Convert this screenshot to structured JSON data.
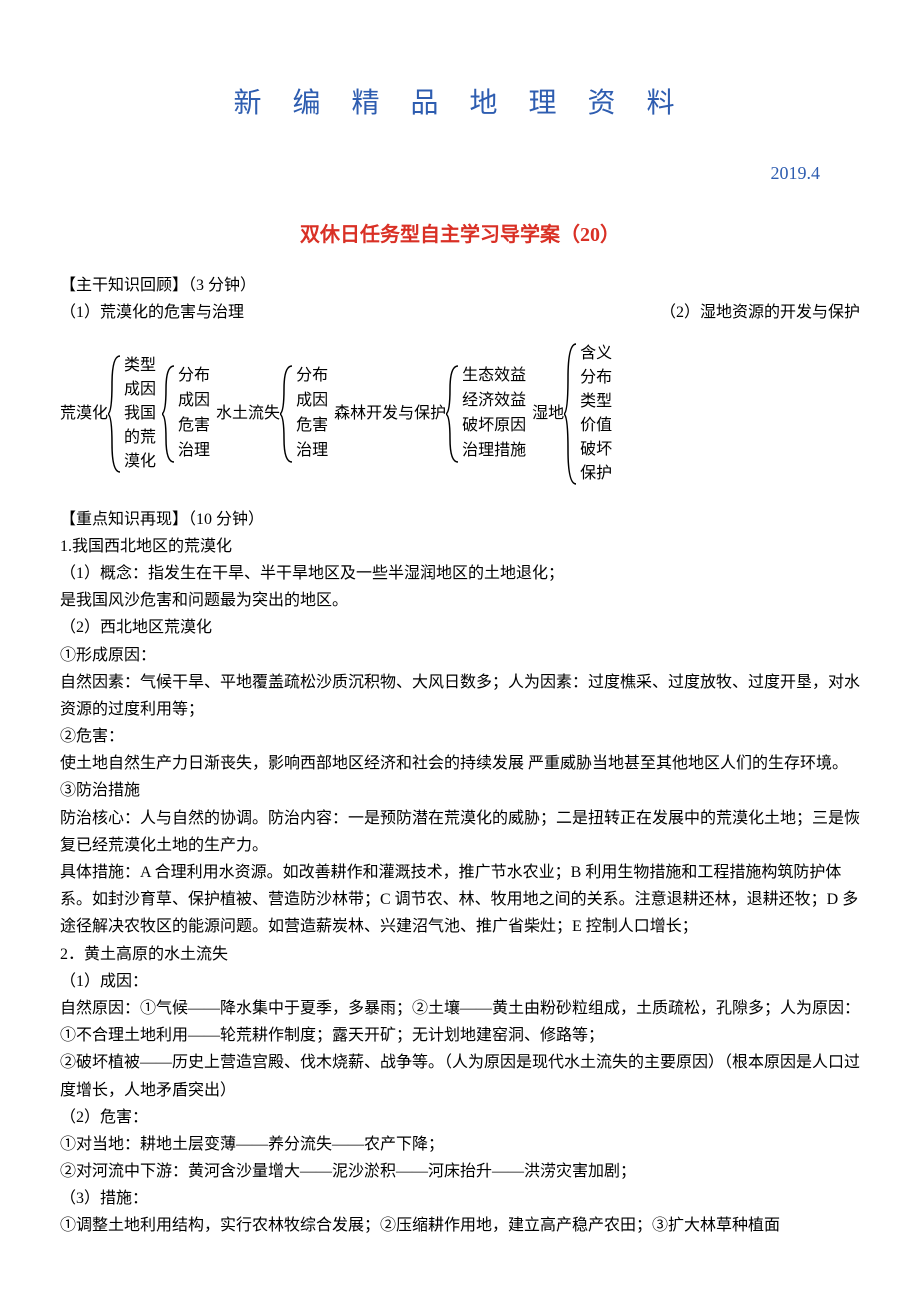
{
  "title": "新 编 精 品 地 理 资 料",
  "date": "2019.4",
  "subtitle": "双休日任务型自主学习导学案（20）",
  "sec1": {
    "header": "【主干知识回顾】（3 分钟）",
    "left": "（1）荒漠化的危害与治理",
    "right": "（2）湿地资源的开发与保护"
  },
  "brackets": {
    "g1_label": "荒漠化",
    "g1_items": [
      "类型",
      "成因",
      "我国",
      "的荒",
      "漠化"
    ],
    "g2_items": [
      "分布",
      "成因",
      "危害",
      "治理"
    ],
    "g3_label": "水土流失",
    "g3_items": [
      "分布",
      "成因",
      "危害",
      "治理"
    ],
    "g4_label": "森林开发与保护",
    "g4_items": [
      "生态效益",
      "经济效益",
      "破坏原因",
      "治理措施"
    ],
    "g5_label": "湿地",
    "g5_items": [
      "含义",
      "分布",
      "类型",
      "价值",
      "破坏",
      "保护"
    ]
  },
  "sec2_header": "【重点知识再现】（10 分钟）",
  "body": [
    "1.我国西北地区的荒漠化",
    "（1）概念：指发生在干旱、半干旱地区及一些半湿润地区的土地退化；",
    "是我国风沙危害和问题最为突出的地区。",
    "（2）西北地区荒漠化",
    "①形成原因：",
    "自然因素：气候干旱、平地覆盖疏松沙质沉积物、大风日数多；人为因素：过度樵采、过度放牧、过度开垦，对水资源的过度利用等；",
    "②危害：",
    "使土地自然生产力日渐丧失，影响西部地区经济和社会的持续发展 严重威胁当地甚至其他地区人们的生存环境。",
    "③防治措施",
    "防治核心：人与自然的协调。防治内容：一是预防潜在荒漠化的威胁；二是扭转正在发展中的荒漠化土地；三是恢复已经荒漠化土地的生产力。",
    "具体措施：A 合理利用水资源。如改善耕作和灌溉技术，推广节水农业；B 利用生物措施和工程措施构筑防护体系。如封沙育草、保护植被、营造防沙林带；C 调节农、林、牧用地之间的关系。注意退耕还林，退耕还牧；D 多途径解决农牧区的能源问题。如营造薪炭林、兴建沼气池、推广省柴灶；E 控制人口增长；",
    "2．黄土高原的水土流失",
    "（1）成因：",
    "自然原因：①气候——降水集中于夏季，多暴雨；②土壤——黄土由粉砂粒组成，土质疏松，孔隙多；人为原因：①不合理土地利用——轮荒耕作制度；露天开矿；无计划地建窑洞、修路等；",
    "②破坏植被——历史上营造宫殿、伐木烧薪、战争等。（人为原因是现代水土流失的主要原因）（根本原因是人口过度增长，人地矛盾突出）",
    "（2）危害：",
    "①对当地：耕地土层变薄——养分流失——农产下降；",
    "②对河流中下游：黄河含沙量增大——泥沙淤积——河床抬升——洪涝灾害加剧；",
    "（3）措施：",
    "①调整土地利用结构，实行农林牧综合发展；②压缩耕作用地，建立高产稳产农田；③扩大林草种植面"
  ],
  "colors": {
    "title": "#2e5db0",
    "subtitle": "#d93025",
    "text": "#000000",
    "background": "#ffffff"
  },
  "fonts": {
    "title_size": 28,
    "subtitle_size": 20,
    "body_size": 16
  }
}
